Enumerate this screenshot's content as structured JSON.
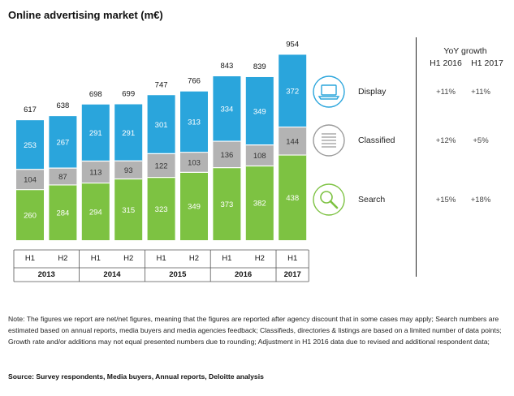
{
  "title": "Online advertising market (m€)",
  "chart_data": {
    "type": "bar",
    "stacked": true,
    "categories": [
      "H1",
      "H2",
      "H1",
      "H2",
      "H1",
      "H2",
      "H1",
      "H2",
      "H1"
    ],
    "years": [
      {
        "label": "2013",
        "span": 2
      },
      {
        "label": "2014",
        "span": 2
      },
      {
        "label": "2015",
        "span": 2
      },
      {
        "label": "2016",
        "span": 2
      },
      {
        "label": "2017",
        "span": 1
      }
    ],
    "series": [
      {
        "name": "Search",
        "color": "#7dc242",
        "values": [
          260,
          284,
          294,
          315,
          323,
          349,
          373,
          382,
          438
        ]
      },
      {
        "name": "Classified",
        "color": "#b3b3b3",
        "values": [
          104,
          87,
          113,
          93,
          122,
          103,
          136,
          108,
          144
        ]
      },
      {
        "name": "Display",
        "color": "#2aa5dc",
        "values": [
          253,
          267,
          291,
          291,
          301,
          313,
          334,
          349,
          372
        ]
      }
    ],
    "totals": [
      617,
      638,
      698,
      699,
      747,
      766,
      843,
      839,
      954
    ],
    "ylim": [
      0,
      1000
    ]
  },
  "legend": [
    {
      "label": "Display",
      "icon": "laptop-icon",
      "growth_h1_2016": "+11%",
      "growth_h1_2017": "+11%"
    },
    {
      "label": "Classified",
      "icon": "list-icon",
      "growth_h1_2016": "+12%",
      "growth_h1_2017": "+5%"
    },
    {
      "label": "Search",
      "icon": "magnifier-icon",
      "growth_h1_2016": "+15%",
      "growth_h1_2017": "+18%"
    }
  ],
  "yoy": {
    "heading": "YoY growth",
    "col1": "H1 2016",
    "col2": "H1 2017"
  },
  "note": "Note: The figures we report are net/net figures, meaning that the figures are reported after agency discount that in some cases may apply; Search numbers are estimated based on annual reports, media buyers and media agencies feedback; Classifieds, directories & listings are based on a limited number of data points; Growth rate and/or additions may not equal presented numbers due to rounding; Adjustment in H1 2016 data due to revised and additional respondent data;",
  "source": "Source: Survey respondents, Media buyers, Annual reports, Deloitte analysis"
}
